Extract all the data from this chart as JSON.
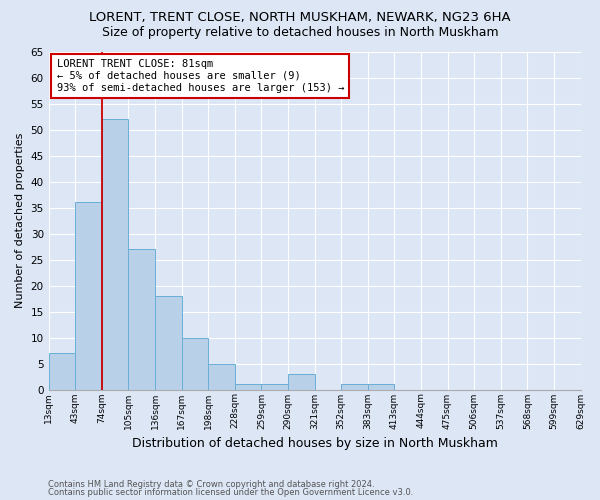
{
  "title": "LORENT, TRENT CLOSE, NORTH MUSKHAM, NEWARK, NG23 6HA",
  "subtitle": "Size of property relative to detached houses in North Muskham",
  "xlabel": "Distribution of detached houses by size in North Muskham",
  "ylabel": "Number of detached properties",
  "bar_values": [
    7,
    36,
    52,
    27,
    18,
    10,
    5,
    1,
    1,
    3,
    0,
    1,
    1,
    0,
    0,
    0,
    0,
    0,
    0,
    0
  ],
  "tick_labels": [
    "13sqm",
    "43sqm",
    "74sqm",
    "105sqm",
    "136sqm",
    "167sqm",
    "198sqm",
    "228sqm",
    "259sqm",
    "290sqm",
    "321sqm",
    "352sqm",
    "383sqm",
    "413sqm",
    "444sqm",
    "475sqm",
    "506sqm",
    "537sqm",
    "568sqm",
    "599sqm",
    "629sqm"
  ],
  "bar_color": "#b8d0e8",
  "bar_edge_color": "#6aaed6",
  "red_line_x": 2.0,
  "annotation_text": "LORENT TRENT CLOSE: 81sqm\n← 5% of detached houses are smaller (9)\n93% of semi-detached houses are larger (153) →",
  "annotation_box_color": "#ffffff",
  "annotation_box_edge": "#cc0000",
  "red_line_color": "#cc0000",
  "ylim": [
    0,
    65
  ],
  "yticks": [
    0,
    5,
    10,
    15,
    20,
    25,
    30,
    35,
    40,
    45,
    50,
    55,
    60,
    65
  ],
  "footer1": "Contains HM Land Registry data © Crown copyright and database right 2024.",
  "footer2": "Contains public sector information licensed under the Open Government Licence v3.0.",
  "bg_color": "#dce6f5",
  "title_fontsize": 9.5,
  "subtitle_fontsize": 9,
  "ylabel_fontsize": 8,
  "xlabel_fontsize": 9,
  "annotation_fontsize": 7.5,
  "tick_fontsize": 6.5,
  "ytick_fontsize": 7.5,
  "footer_fontsize": 6.0
}
